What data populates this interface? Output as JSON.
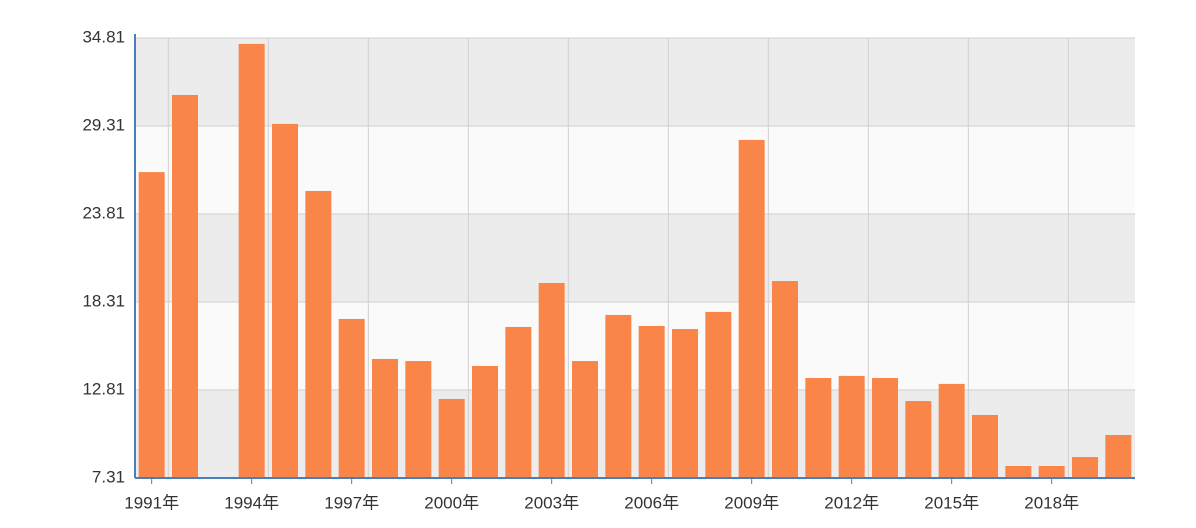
{
  "chart_data": {
    "type": "bar",
    "categories": [
      "1991年",
      null,
      null,
      "1994年",
      null,
      null,
      "1997年",
      null,
      null,
      "2000年",
      null,
      null,
      "2003年",
      null,
      null,
      "2006年",
      null,
      null,
      "2009年",
      null,
      null,
      "2012年",
      null,
      null,
      "2015年",
      null,
      null,
      "2018年",
      null,
      null
    ],
    "values": [
      26.43,
      31.25,
      null,
      34.44,
      29.44,
      25.25,
      17.25,
      14.75,
      14.62,
      12.25,
      14.31,
      16.75,
      19.5,
      14.62,
      17.5,
      16.81,
      16.62,
      17.69,
      28.44,
      19.62,
      13.56,
      13.69,
      13.56,
      12.12,
      13.19,
      11.25,
      8.06,
      8.06,
      8.62,
      10.0
    ],
    "color": "#fa8549",
    "ylim": [
      7.31,
      34.81
    ],
    "yticks": [
      7.31,
      12.81,
      18.31,
      23.81,
      29.31,
      34.81
    ],
    "grid": true
  }
}
